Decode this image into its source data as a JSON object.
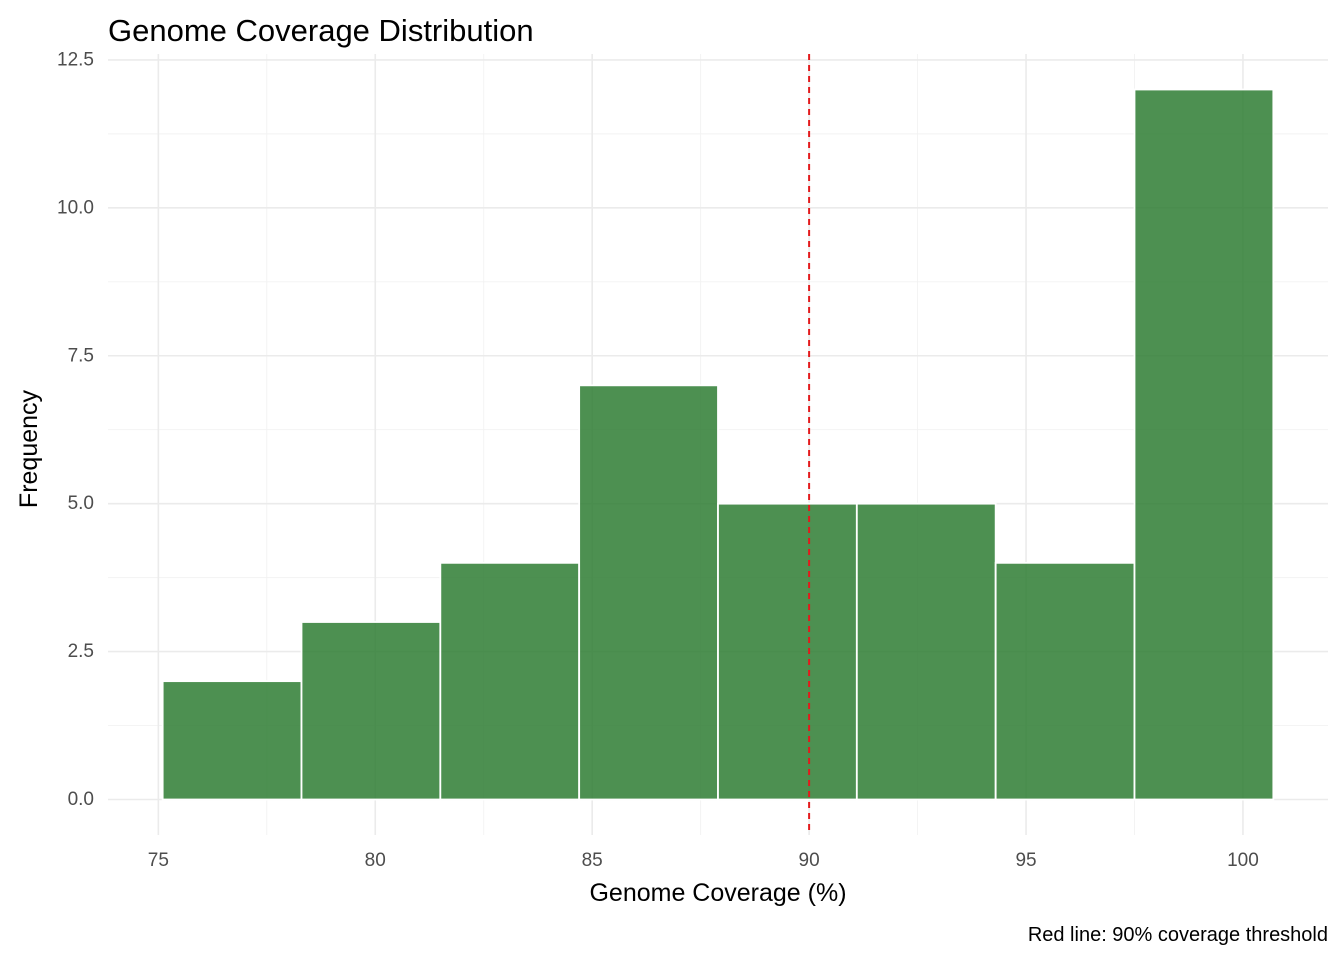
{
  "chart_data": {
    "type": "bar",
    "subtype": "histogram",
    "title": "Genome Coverage Distribution",
    "xlabel": "Genome Coverage (%)",
    "ylabel": "Frequency",
    "caption": "Red line: 90% coverage threshold",
    "bins": [
      {
        "x_start": 75.1,
        "x_end": 78.3,
        "count": 2
      },
      {
        "x_start": 78.3,
        "x_end": 81.5,
        "count": 3
      },
      {
        "x_start": 81.5,
        "x_end": 84.7,
        "count": 4
      },
      {
        "x_start": 84.7,
        "x_end": 87.9,
        "count": 7
      },
      {
        "x_start": 87.9,
        "x_end": 91.1,
        "count": 5
      },
      {
        "x_start": 91.1,
        "x_end": 94.3,
        "count": 5
      },
      {
        "x_start": 94.3,
        "x_end": 97.5,
        "count": 4
      },
      {
        "x_start": 97.5,
        "x_end": 100.7,
        "count": 12
      }
    ],
    "x_ticks": [
      75,
      80,
      85,
      90,
      95,
      100
    ],
    "y_ticks": [
      "0.0",
      "2.5",
      "5.0",
      "7.5",
      "10.0",
      "12.5"
    ],
    "xlim": [
      73.84,
      101.96
    ],
    "ylim": [
      -0.6,
      12.6
    ],
    "threshold": {
      "x": 90,
      "color": "#e31a1c",
      "style": "dashed"
    },
    "bar_color": "#2e7d32",
    "bar_outline_color": "#ffffff",
    "grid": true,
    "legend": "none"
  }
}
